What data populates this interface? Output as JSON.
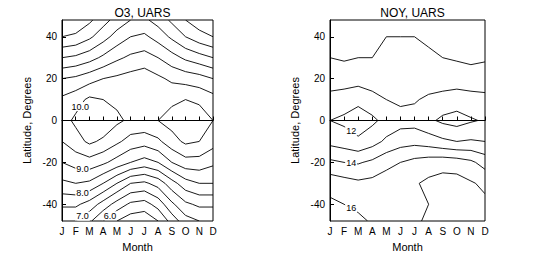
{
  "chart_data": [
    {
      "type": "contour",
      "title": "O3, UARS",
      "x_label": "Month",
      "y_label": "Latitude, Degrees",
      "categories": [
        "J",
        "F",
        "M",
        "A",
        "M",
        "J",
        "J",
        "A",
        "S",
        "O",
        "N",
        "D"
      ],
      "y": [
        -48,
        -40,
        -30,
        -20,
        -10,
        0,
        10,
        20,
        30,
        40,
        48
      ],
      "values": [
        [
          7.0,
          7.0,
          6.6,
          6.0,
          5.5,
          5.2,
          5.1,
          5.5,
          6.2,
          6.8,
          7.0,
          7.0
        ],
        [
          7.6,
          7.6,
          7.3,
          6.8,
          6.3,
          5.9,
          5.8,
          6.2,
          6.9,
          7.4,
          7.6,
          7.6
        ],
        [
          8.4,
          8.5,
          8.4,
          8.0,
          7.5,
          7.0,
          6.9,
          7.2,
          7.8,
          8.3,
          8.5,
          8.5
        ],
        [
          9.0,
          9.2,
          9.3,
          9.1,
          8.8,
          8.5,
          8.3,
          8.5,
          9.0,
          9.3,
          9.3,
          9.1
        ],
        [
          9.5,
          9.8,
          10.1,
          9.9,
          9.6,
          9.3,
          9.2,
          9.4,
          9.8,
          10.1,
          10.0,
          9.7
        ],
        [
          9.8,
          10.1,
          10.5,
          10.4,
          10.1,
          9.9,
          9.9,
          10.0,
          10.2,
          10.4,
          10.3,
          10.0
        ],
        [
          9.6,
          9.8,
          10.1,
          10.0,
          9.9,
          9.9,
          10.0,
          9.9,
          9.9,
          10.0,
          9.9,
          9.7
        ],
        [
          9.0,
          9.1,
          9.3,
          9.5,
          9.6,
          9.7,
          9.8,
          9.6,
          9.4,
          9.3,
          9.2,
          9.0
        ],
        [
          8.0,
          8.1,
          8.3,
          8.6,
          8.9,
          9.1,
          9.2,
          9.0,
          8.7,
          8.4,
          8.2,
          8.0
        ],
        [
          7.0,
          7.1,
          7.4,
          7.8,
          8.2,
          8.5,
          8.6,
          8.3,
          7.9,
          7.5,
          7.2,
          7.0
        ],
        [
          6.5,
          6.6,
          6.9,
          7.3,
          7.7,
          8.0,
          8.1,
          7.8,
          7.4,
          7.0,
          6.7,
          6.5
        ]
      ],
      "levels": [
        5.5,
        6,
        6.5,
        7,
        7.5,
        8,
        8.5,
        9,
        9.5,
        10
      ],
      "contour_labels": [
        {
          "value": 6,
          "label": "6.0"
        },
        {
          "value": 7,
          "label": "7.0"
        },
        {
          "value": 8,
          "label": "8.0"
        },
        {
          "value": 9,
          "label": "9.0"
        },
        {
          "value": 10,
          "label": "10.0"
        }
      ],
      "ylim": [
        -48,
        48
      ],
      "yticks": [
        -40,
        -20,
        0,
        20,
        40
      ],
      "grid": false
    },
    {
      "type": "contour",
      "title": "NOY, UARS",
      "x_label": "Month",
      "y_label": "Latitude, Degrees",
      "categories": [
        "J",
        "F",
        "M",
        "A",
        "M",
        "J",
        "J",
        "A",
        "S",
        "O",
        "N",
        "D"
      ],
      "y": [
        -48,
        -40,
        -30,
        -20,
        -10,
        0,
        10,
        20,
        30,
        40,
        48
      ],
      "values": [
        [
          16.6,
          16.5,
          16.2,
          15.9,
          15.8,
          15.8,
          15.9,
          16.1,
          16.3,
          16.4,
          16.4,
          16.6
        ],
        [
          16.2,
          16.0,
          15.8,
          15.6,
          15.6,
          15.7,
          15.8,
          16.0,
          16.2,
          16.2,
          16.1,
          16.2
        ],
        [
          15.6,
          15.4,
          15.2,
          15.3,
          15.5,
          15.7,
          15.9,
          16.2,
          16.4,
          16.4,
          16.1,
          15.8
        ],
        [
          14.2,
          14.0,
          13.9,
          14.2,
          14.7,
          15.0,
          15.3,
          15.5,
          15.6,
          15.5,
          15.2,
          14.6
        ],
        [
          12.7,
          12.5,
          12.2,
          12.6,
          13.2,
          13.6,
          13.7,
          13.5,
          13.2,
          13.0,
          13.1,
          13.0
        ],
        [
          12.0,
          11.8,
          11.4,
          11.8,
          12.3,
          12.6,
          12.6,
          12.2,
          11.8,
          11.6,
          11.9,
          12.1
        ],
        [
          12.6,
          12.5,
          12.3,
          12.6,
          13.0,
          13.2,
          13.1,
          12.8,
          12.6,
          12.5,
          12.6,
          12.7
        ],
        [
          13.6,
          13.5,
          13.4,
          13.6,
          13.8,
          13.8,
          13.7,
          13.6,
          13.6,
          13.5,
          13.6,
          13.6
        ],
        [
          14.0,
          14.1,
          14.0,
          14.0,
          13.9,
          13.8,
          13.8,
          13.9,
          14.0,
          14.1,
          14.2,
          14.1
        ],
        [
          14.3,
          14.3,
          14.2,
          14.1,
          14.0,
          14.0,
          14.0,
          14.1,
          14.2,
          14.3,
          14.4,
          14.3
        ],
        [
          14.5,
          14.5,
          14.4,
          14.3,
          14.2,
          14.1,
          14.1,
          14.2,
          14.3,
          14.4,
          14.5,
          14.5
        ]
      ],
      "levels": [
        12,
        13,
        14,
        15,
        16
      ],
      "contour_labels": [
        {
          "value": 12,
          "label": "12"
        },
        {
          "value": 14,
          "label": "14"
        },
        {
          "value": 16,
          "label": "16"
        }
      ],
      "ylim": [
        -48,
        48
      ],
      "yticks": [
        -40,
        -20,
        0,
        20,
        40
      ],
      "grid": false
    }
  ]
}
